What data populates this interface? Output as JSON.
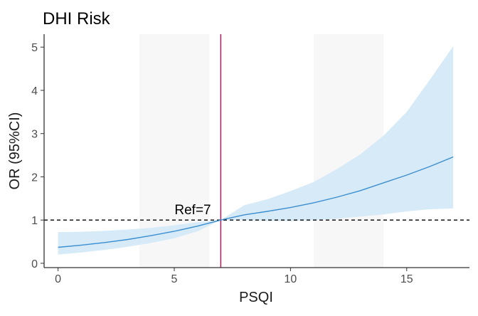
{
  "chart_data": {
    "type": "line",
    "title": "DHI Risk",
    "xlabel": "PSQI",
    "ylabel": "OR (95%CI)",
    "xlim": [
      -0.6,
      17.7
    ],
    "ylim": [
      -0.1,
      5.3
    ],
    "x_ticks": [
      0,
      5,
      10,
      15
    ],
    "y_ticks": [
      0,
      1,
      2,
      3,
      4,
      5
    ],
    "grid": false,
    "reference": {
      "x": 7,
      "y": 1,
      "label": "Ref=7"
    },
    "series": [
      {
        "x": [
          0,
          1,
          2,
          3,
          4,
          5,
          6,
          7,
          8,
          9,
          10,
          11,
          12,
          13,
          14,
          15,
          16,
          17
        ],
        "y": [
          0.37,
          0.42,
          0.48,
          0.55,
          0.64,
          0.74,
          0.86,
          1.0,
          1.12,
          1.2,
          1.29,
          1.4,
          1.53,
          1.68,
          1.86,
          2.04,
          2.24,
          2.46
        ],
        "lower": [
          0.2,
          0.25,
          0.31,
          0.38,
          0.47,
          0.58,
          0.74,
          1.0,
          1.0,
          0.98,
          0.98,
          1.0,
          1.03,
          1.08,
          1.13,
          1.2,
          1.25,
          1.27
        ],
        "upper": [
          0.72,
          0.73,
          0.75,
          0.78,
          0.82,
          0.88,
          0.95,
          1.0,
          1.34,
          1.48,
          1.67,
          1.88,
          2.18,
          2.52,
          2.95,
          3.5,
          4.25,
          5.02
        ]
      }
    ],
    "colors": {
      "line": "#3b8fd0",
      "ci_band": "#d6eaf8",
      "ref_vertical": "#c2185b",
      "ref_horizontal": "#000000",
      "axis": "#333333",
      "panel_background": "#ffffff",
      "stripe": "#f7f7f7"
    }
  }
}
